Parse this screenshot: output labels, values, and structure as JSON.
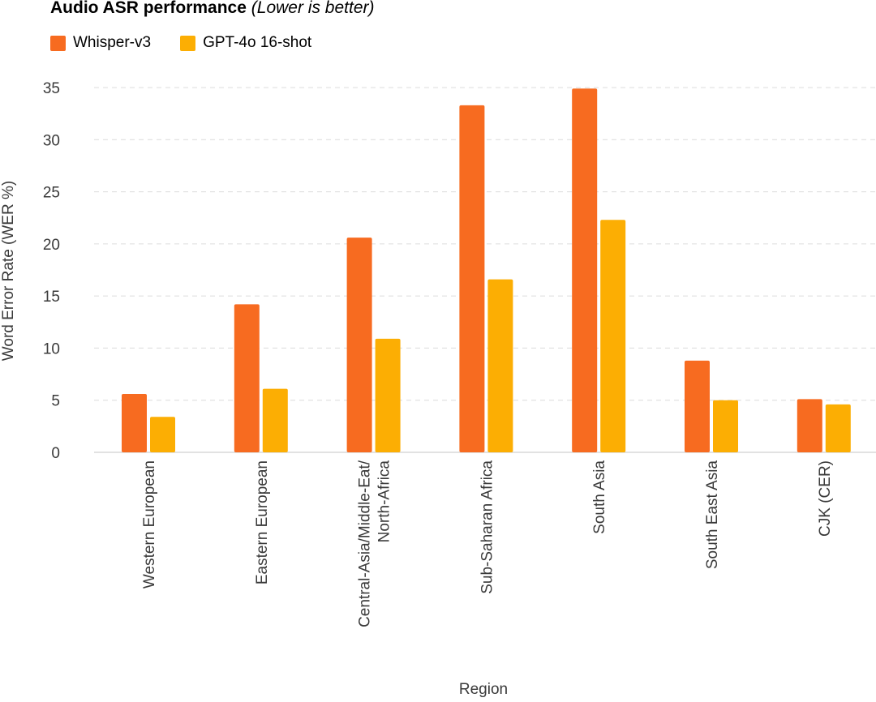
{
  "chart_data": {
    "type": "bar",
    "title": "Audio ASR performance",
    "subtitle": "(Lower is better)",
    "xlabel": "Region",
    "ylabel": "Word Error Rate (WER %)",
    "ylim": [
      0,
      35
    ],
    "yticks": [
      0,
      5,
      10,
      15,
      20,
      25,
      30,
      35
    ],
    "grid": true,
    "legend_position": "top-left",
    "categories": [
      "Western European",
      "Eastern European",
      "Central-Asia/Middle-Eat/ North-Africa",
      "Sub-Saharan Africa",
      "South Asia",
      "South East Asia",
      "CJK (CER)"
    ],
    "series": [
      {
        "name": "Whisper-v3",
        "color": "#f76b20",
        "values": [
          5.6,
          14.2,
          20.6,
          33.3,
          34.9,
          8.8,
          5.1
        ]
      },
      {
        "name": "GPT-4o 16-shot",
        "color": "#fcae03",
        "values": [
          3.4,
          6.1,
          10.9,
          16.6,
          22.3,
          5.0,
          4.6
        ]
      }
    ]
  }
}
